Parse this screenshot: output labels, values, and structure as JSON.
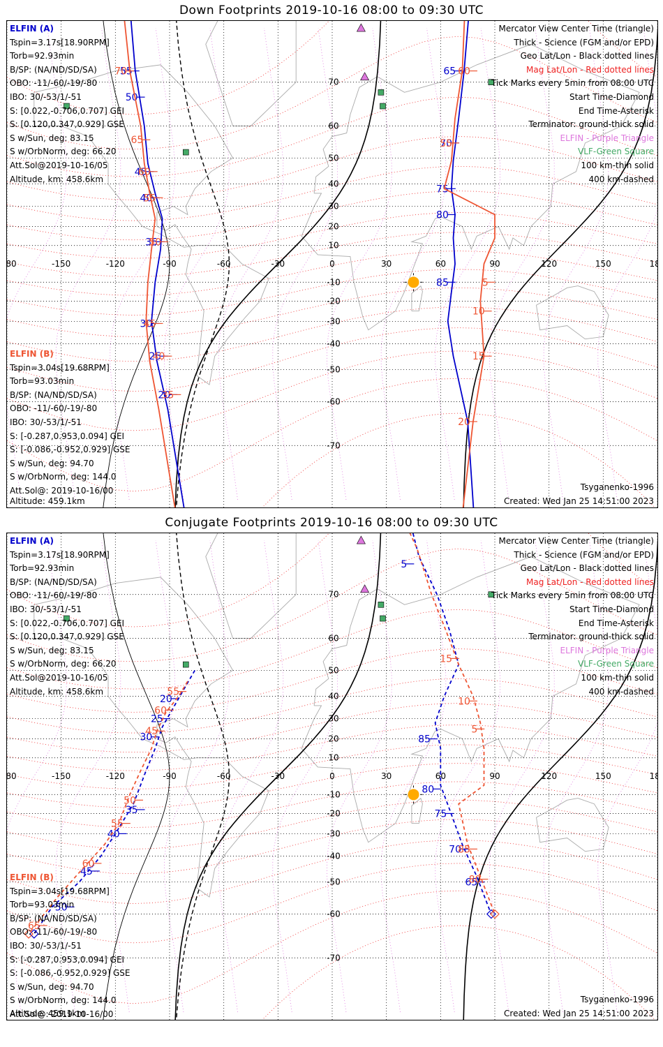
{
  "colors": {
    "elfin_a": "#0000cc",
    "elfin_b": "#ee5533",
    "mag_grid": "#ee2222",
    "geo_grid": "#000000",
    "elfin_marker": "#dd77dd",
    "vlf_marker": "#44aa66",
    "sun": "#ffaa00"
  },
  "panels": [
    {
      "title": "Down Footprints 2019-10-16 08:00 to 09:30 UTC",
      "left_block_a": [
        "ELFIN (A)",
        "Tspin=3.17s[18.90RPM]",
        "Torb=92.93min",
        "B/SP: (NA/ND/SD/SA)",
        "OBO: -11/-60/-19/-80",
        "IBO: 30/-53/1/-51",
        "S: [0.022,-0.706,0.707] GEI",
        "S: [0.120,0.347,0.929] GSE",
        "S w/Sun, deg: 83.15",
        "S w/OrbNorm, deg: 66.20",
        "Att.Sol@2019-10-16/05",
        "Altitude, km: 458.6km"
      ],
      "left_block_b": [
        "ELFIN (B)",
        "Tspin=3.04s[19.68RPM]",
        "Torb=93.03min",
        "B/SP: (NA/ND/SD/SA)",
        "OBO: -11/-60/-19/-80",
        "IBO: 30/-53/1/-51",
        "S: [-0.287,0.953,0.094] GEI",
        "S: [-0.086,-0.952,0.929] GSE",
        "S w/Sun, deg: 94.70",
        "S w/OrbNorm, deg: 144.0",
        "Att.Sol@: 2019-10-16/00"
      ],
      "altitude_b": "Altitude: 459.1km",
      "legend": [
        "Mercator View Center Time (triangle)",
        "Thick - Science (FGM and/or EPD)",
        "Geo Lat/Lon - Black dotted lines",
        "Mag Lat/Lon - Red dotted lines",
        "Tick Marks every 5min from 08:00 UTC",
        "Start Time-Diamond",
        "End Time-Asterisk",
        "Terminator: ground-thick solid",
        "ELFIN - Purple Triangle",
        "VLF-Green Square",
        "100 km-thin solid",
        "400 km-dashed"
      ],
      "model": "Tsyganenko-1996",
      "created": "Created: Wed Jan 25 14:51:00 2023"
    },
    {
      "title": "Conjugate Footprints 2019-10-16 08:00 to 09:30 UTC",
      "left_block_a": [
        "ELFIN (A)",
        "Tspin=3.17s[18.90RPM]",
        "Torb=92.93min",
        "B/SP: (NA/ND/SD/SA)",
        "OBO: -11/-60/-19/-80",
        "IBO: 30/-53/1/-51",
        "S: [0.022,-0.706,0.707] GEI",
        "S: [0.120,0.347,0.929] GSE",
        "S w/Sun, deg: 83.15",
        "S w/OrbNorm, deg: 66.20",
        "Att.Sol@2019-10-16/05",
        "Altitude, km: 458.6km"
      ],
      "left_block_b": [
        "ELFIN (B)",
        "Tspin=3.04s[19.68RPM]",
        "Torb=93.03min",
        "B/SP: (NA/ND/SD/SA)",
        "OBO: -11/-60/-19/-80",
        "IBO: 30/-53/1/-51",
        "S: [-0.287,0.953,0.094] GEI",
        "S: [-0.086,-0.952,0.929] GSE",
        "S w/Sun, deg: 94.70",
        "S w/OrbNorm, deg: 144.0",
        "Att.Sol@: 2019-10-16/00"
      ],
      "altitude_b": "Altitude: 459.1km",
      "legend": [
        "Mercator View Center Time (triangle)",
        "Thick - Science (FGM and/or EPD)",
        "Geo Lat/Lon - Black dotted lines",
        "Mag Lat/Lon - Red dotted lines",
        "Tick Marks every 5min from 08:00 UTC",
        "Start Time-Diamond",
        "End Time-Asterisk",
        "Terminator: ground-thick solid",
        "ELFIN - Purple Triangle",
        "VLF-Green Square",
        "100 km-thin solid",
        "400 km-dashed"
      ],
      "model": "Tsyganenko-1996",
      "created": "Created: Wed Jan 25 14:51:00 2023"
    }
  ],
  "chart_data": [
    {
      "type": "map",
      "title": "Down Footprints 2019-10-16 08:00 to 09:30 UTC",
      "projection": "mercator",
      "xlim": [
        -180,
        180
      ],
      "ylim": [
        -80,
        80
      ],
      "lon_ticks": [
        -180,
        -150,
        -120,
        -90,
        -60,
        -30,
        0,
        30,
        60,
        90,
        120,
        150,
        180
      ],
      "lon_tick_labels": [
        "-180",
        "-150",
        "-120",
        "-90",
        "-60",
        "-30",
        "0",
        "30",
        "60",
        "90",
        "120",
        "150",
        "180"
      ],
      "lat_ticks": [
        -70,
        -60,
        -50,
        -40,
        -30,
        -20,
        -10,
        10,
        20,
        30,
        40,
        50,
        60,
        70
      ],
      "grid": true,
      "sun": {
        "lon": 45,
        "lat": -10
      },
      "elfin_markers": [
        {
          "lon": 16,
          "lat": 78
        },
        {
          "lon": 18,
          "lat": 71
        }
      ],
      "vlf_markers": [
        {
          "lon": -147,
          "lat": 65
        },
        {
          "lon": -81,
          "lat": 52
        },
        {
          "lon": 27,
          "lat": 68
        },
        {
          "lon": 28,
          "lat": 65
        },
        {
          "lon": 88,
          "lat": 70
        }
      ],
      "series": [
        {
          "name": "ELFIN (A)",
          "track": [
            [
              -113,
              82
            ],
            [
              -109,
              72
            ],
            [
              -104,
              60
            ],
            [
              -102,
              48
            ],
            [
              -98,
              36
            ],
            [
              -94,
              24
            ],
            [
              -95,
              8
            ],
            [
              -98,
              -10
            ],
            [
              -100,
              -30
            ],
            [
              -97,
              -47
            ],
            [
              -91,
              -62
            ],
            [
              -80,
              -81
            ]
          ],
          "ticks": [
            {
              "label": "55",
              "lon": -109,
              "lat": 72
            },
            {
              "label": "50",
              "lon": -106,
              "lat": 67
            },
            {
              "label": "45",
              "lon": -101,
              "lat": 45
            },
            {
              "label": "40",
              "lon": -98,
              "lat": 34
            },
            {
              "label": "35",
              "lon": -95,
              "lat": 12
            },
            {
              "label": "30",
              "lon": -98,
              "lat": -31
            },
            {
              "label": "25",
              "lon": -93,
              "lat": -45
            },
            {
              "label": "20",
              "lon": -88,
              "lat": -58
            }
          ]
        },
        {
          "name": "ELFIN (B)",
          "track": [
            [
              -117,
              82
            ],
            [
              -112,
              72
            ],
            [
              -106,
              60
            ],
            [
              -104,
              48
            ],
            [
              -101,
              36
            ],
            [
              -98,
              24
            ],
            [
              -100,
              8
            ],
            [
              -102,
              -10
            ],
            [
              -103,
              -30
            ],
            [
              -101,
              -47
            ],
            [
              -96,
              -62
            ],
            [
              -85,
              -81
            ]
          ],
          "ticks": [
            {
              "label": "70",
              "lon": -112,
              "lat": 72
            },
            {
              "label": "65",
              "lon": -103,
              "lat": 56
            },
            {
              "label": "60",
              "lon": -99,
              "lat": 45
            },
            {
              "label": "55",
              "lon": -96,
              "lat": 34
            },
            {
              "label": "50",
              "lon": -93,
              "lat": 12
            },
            {
              "label": "45",
              "lon": -96,
              "lat": -31
            },
            {
              "label": "40",
              "lon": -91,
              "lat": -45
            },
            {
              "label": "35",
              "lon": -86,
              "lat": -58
            }
          ]
        },
        {
          "name": "ELFIN (A) east",
          "track": [
            [
              77,
              82
            ],
            [
              73,
              72
            ],
            [
              70,
              62
            ],
            [
              67,
              49
            ],
            [
              66,
              38
            ],
            [
              68,
              26
            ],
            [
              67,
              14
            ],
            [
              68,
              0
            ],
            [
              66,
              -15
            ],
            [
              64,
              -30
            ],
            [
              67,
              -45
            ],
            [
              75,
              -65
            ],
            [
              79,
              -81
            ]
          ],
          "ticks": [
            {
              "label": "65",
              "lon": 70,
              "lat": 72
            },
            {
              "label": "70",
              "lon": 68,
              "lat": 55
            },
            {
              "label": "75",
              "lon": 66,
              "lat": 38
            },
            {
              "label": "80",
              "lon": 66,
              "lat": 26
            },
            {
              "label": "85",
              "lon": 66,
              "lat": -10
            }
          ]
        },
        {
          "name": "ELFIN (B) east",
          "track": [
            [
              74,
              82
            ],
            [
              72,
              72
            ],
            [
              68,
              62
            ],
            [
              66,
              49
            ],
            [
              62,
              38
            ],
            [
              90,
              26
            ],
            [
              90,
              14
            ],
            [
              84,
              0
            ],
            [
              82,
              -20
            ],
            [
              84,
              -45
            ],
            [
              78,
              -65
            ],
            [
              71,
              -81
            ]
          ],
          "ticks": [
            {
              "label": "60",
              "lon": 78,
              "lat": 72
            },
            {
              "label": "55",
              "lon": 68,
              "lat": 55
            },
            {
              "label": "5",
              "lon": 88,
              "lat": -10
            },
            {
              "label": "10",
              "lon": 86,
              "lat": -25
            },
            {
              "label": "15",
              "lon": 86,
              "lat": -45
            },
            {
              "label": "20",
              "lon": 78,
              "lat": -65
            }
          ]
        }
      ]
    },
    {
      "type": "map",
      "title": "Conjugate Footprints 2019-10-16 08:00 to 09:30 UTC",
      "projection": "mercator",
      "xlim": [
        -180,
        180
      ],
      "ylim": [
        -80,
        80
      ],
      "lon_ticks": [
        -180,
        -150,
        -120,
        -90,
        -60,
        -30,
        0,
        30,
        60,
        90,
        120,
        150,
        180
      ],
      "lon_tick_labels": [
        "-180",
        "-150",
        "-120",
        "-90",
        "-60",
        "-30",
        "0",
        "30",
        "60",
        "90",
        "120",
        "150",
        "180"
      ],
      "lat_ticks": [
        -70,
        -60,
        -50,
        -40,
        -30,
        -20,
        -10,
        10,
        20,
        30,
        40,
        50,
        60,
        70
      ],
      "grid": true,
      "sun": {
        "lon": 45,
        "lat": -10
      },
      "elfin_markers": [
        {
          "lon": 16,
          "lat": 78
        },
        {
          "lon": 18,
          "lat": 71
        }
      ],
      "vlf_markers": [
        {
          "lon": -147,
          "lat": 65
        },
        {
          "lon": -81,
          "lat": 52
        },
        {
          "lon": 27,
          "lat": 68
        },
        {
          "lon": 28,
          "lat": 65
        },
        {
          "lon": 88,
          "lat": 70
        }
      ],
      "series": [
        {
          "name": "ELFIN (A)",
          "track": [
            [
              -76,
              50
            ],
            [
              -82,
              43
            ],
            [
              -88,
              35
            ],
            [
              -94,
              26
            ],
            [
              -98,
              15
            ],
            [
              -103,
              3
            ],
            [
              -110,
              -15
            ],
            [
              -120,
              -30
            ],
            [
              -128,
              -40
            ],
            [
              -140,
              -50
            ],
            [
              -155,
              -58
            ],
            [
              -165,
              -65
            ]
          ],
          "ticks": [
            {
              "label": "20",
              "lon": -87,
              "lat": 39
            },
            {
              "label": "25",
              "lon": -92,
              "lat": 30
            },
            {
              "label": "30",
              "lon": -98,
              "lat": 21
            },
            {
              "label": "35",
              "lon": -106,
              "lat": -18
            },
            {
              "label": "40",
              "lon": -116,
              "lat": -30
            },
            {
              "label": "45",
              "lon": -131,
              "lat": -46
            },
            {
              "label": "50",
              "lon": -145,
              "lat": -58
            }
          ]
        },
        {
          "name": "ELFIN (B)",
          "track": [
            [
              -80,
              46
            ],
            [
              -85,
              40
            ],
            [
              -92,
              33
            ],
            [
              -97,
              24
            ],
            [
              -100,
              15
            ],
            [
              -106,
              3
            ],
            [
              -112,
              -10
            ],
            [
              -118,
              -25
            ],
            [
              -126,
              -35
            ],
            [
              -138,
              -45
            ],
            [
              -152,
              -55
            ],
            [
              -168,
              -65
            ]
          ],
          "ticks": [
            {
              "label": "55",
              "lon": -83,
              "lat": 42
            },
            {
              "label": "60",
              "lon": -90,
              "lat": 34
            },
            {
              "label": "45",
              "lon": -95,
              "lat": 24
            },
            {
              "label": "50",
              "lon": -107,
              "lat": -13
            },
            {
              "label": "55",
              "lon": -114,
              "lat": -25
            },
            {
              "label": "60",
              "lon": -130,
              "lat": -43
            },
            {
              "label": "65",
              "lon": -160,
              "lat": -63
            }
          ]
        },
        {
          "name": "ELFIN (A) east",
          "track": [
            [
              43,
              80
            ],
            [
              48,
              76
            ],
            [
              58,
              70
            ],
            [
              65,
              62
            ],
            [
              70,
              52
            ],
            [
              62,
              40
            ],
            [
              57,
              28
            ],
            [
              60,
              15
            ],
            [
              60,
              -5
            ],
            [
              65,
              -18
            ],
            [
              72,
              -35
            ],
            [
              80,
              -48
            ],
            [
              88,
              -60
            ]
          ],
          "ticks": [
            {
              "label": "5",
              "lon": 43,
              "lat": 75
            },
            {
              "label": "85",
              "lon": 56,
              "lat": 20
            },
            {
              "label": "80",
              "lon": 58,
              "lat": -7
            },
            {
              "label": "75",
              "lon": 65,
              "lat": -20
            },
            {
              "label": "70",
              "lon": 73,
              "lat": -37
            },
            {
              "label": "65",
              "lon": 82,
              "lat": -50
            }
          ]
        },
        {
          "name": "ELFIN (B) east",
          "track": [
            [
              40,
              80
            ],
            [
              47,
              77
            ],
            [
              55,
              70
            ],
            [
              63,
              62
            ],
            [
              70,
              52
            ],
            [
              78,
              40
            ],
            [
              82,
              28
            ],
            [
              84,
              15
            ],
            [
              84,
              -5
            ],
            [
              70,
              -15
            ],
            [
              75,
              -35
            ],
            [
              82,
              -48
            ],
            [
              90,
              -60
            ]
          ],
          "ticks": [
            {
              "label": "20",
              "lon": 44,
              "lat": 80
            },
            {
              "label": "15",
              "lon": 68,
              "lat": 54
            },
            {
              "label": "10",
              "lon": 78,
              "lat": 38
            },
            {
              "label": "5",
              "lon": 82,
              "lat": 25
            },
            {
              "label": "85",
              "lon": 78,
              "lat": -37
            },
            {
              "label": "80",
              "lon": 84,
              "lat": -49
            }
          ]
        }
      ]
    }
  ]
}
